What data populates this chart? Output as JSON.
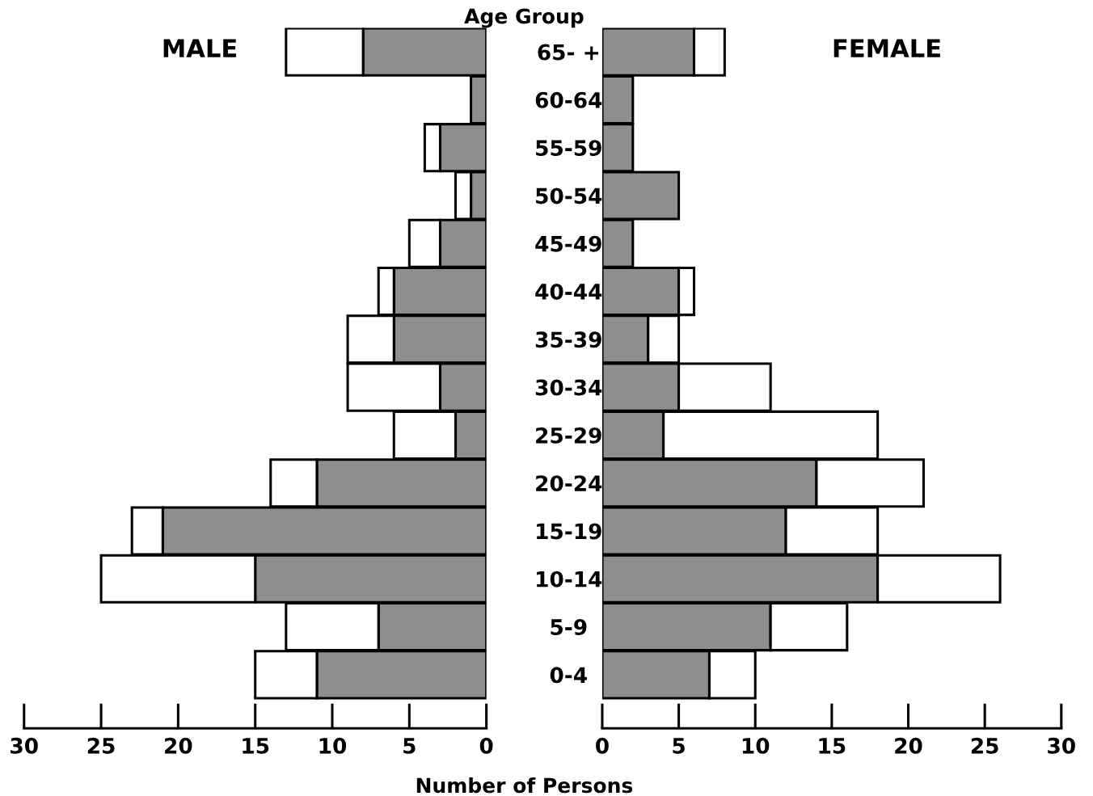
{
  "chart_data": [
    {
      "type": "bar",
      "orientation": "horizontal",
      "stacked": true,
      "title": "MALE",
      "categories": [
        null,
        null,
        null,
        null,
        null,
        null,
        null,
        null,
        null,
        null,
        null,
        null,
        null,
        null
      ],
      "xlim": [
        30,
        0
      ],
      "xticks": [
        0,
        5,
        10,
        15,
        20,
        25,
        30
      ],
      "tick_labels": "x",
      "grid": false,
      "legend": false,
      "series": [
        {
          "color": "#8e8e8e",
          "values": [
            8,
            1,
            3,
            1,
            3,
            6,
            6,
            3,
            2,
            11,
            21,
            15,
            7,
            11
          ]
        },
        {
          "color": "#ffffff",
          "values": [
            5,
            null,
            1,
            1,
            2,
            1,
            3,
            6,
            4,
            3,
            2,
            10,
            6,
            4
          ]
        }
      ]
    },
    {
      "type": "bar",
      "orientation": "horizontal",
      "stacked": true,
      "title": "FEMALE",
      "ylabel": "Age Group",
      "xlabel": "Number of Persons",
      "categories": [
        "65- +",
        "60-64",
        "55-59",
        "50-54",
        "45-49",
        "40-44",
        "35-39",
        "30-34",
        "25-29",
        "20-24",
        "15-19",
        "10-14",
        "5-9",
        "0-4"
      ],
      "xlim": [
        0,
        30
      ],
      "xticks": [
        0,
        5,
        10,
        15,
        20,
        25,
        30
      ],
      "grid": false,
      "legend": false,
      "series": [
        {
          "color": "#8e8e8e",
          "values": [
            6,
            2,
            2,
            5,
            2,
            5,
            3,
            5,
            4,
            14,
            12,
            18,
            11,
            7
          ]
        },
        {
          "color": "#ffffff",
          "values": [
            2,
            null,
            null,
            null,
            null,
            1,
            2,
            6,
            14,
            7,
            6,
            8,
            5,
            3
          ]
        }
      ]
    }
  ]
}
